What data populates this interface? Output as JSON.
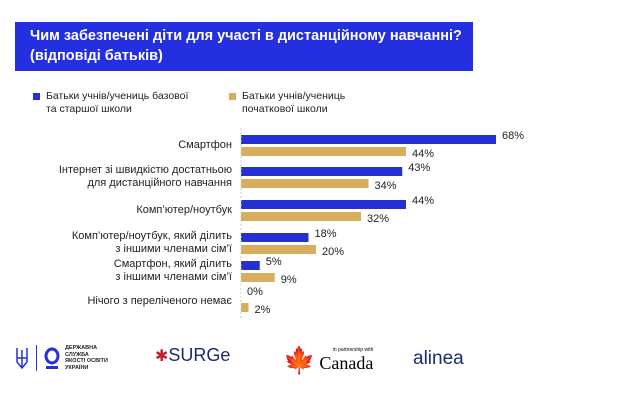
{
  "chart_data": {
    "type": "bar",
    "orientation": "horizontal",
    "title": "Чим забезпечені діти для участі в дистанційному навчанні? (відповіді батьків)",
    "categories": [
      "Смартфон",
      "Інтернет зі швидкістю достатньою для дистанційного навчання",
      "Комп’ютер/ноутбук",
      "Комп’ютер/ноутбук, який ділить з іншими членами сім’ї",
      "Смартфон, який ділить з іншими членами сім’ї",
      "Нічого з переліченого немає"
    ],
    "category_lines": [
      [
        "Смартфон"
      ],
      [
        "Інтернет зі швидкістю достатньою",
        "для дистанційного навчання"
      ],
      [
        "Комп’ютер/ноутбук"
      ],
      [
        "Комп’ютер/ноутбук, який ділить",
        "з іншими членами сім’ї"
      ],
      [
        "Смартфон, який ділить",
        "з іншими членами сім’ї"
      ],
      [
        "Нічого з переліченого немає"
      ]
    ],
    "series": [
      {
        "name": "Батьки учнів/учениць базової та старшої школи",
        "name_lines": [
          "Батьки учнів/учениць базової",
          "та старшої школи"
        ],
        "color": "#2430d0",
        "values": [
          68,
          43,
          44,
          18,
          5,
          0
        ]
      },
      {
        "name": "Батьки учнів/учениць початкової школи",
        "name_lines": [
          "Батьки учнів/учениць",
          "початкової школи"
        ],
        "color": "#d9ad5f",
        "values": [
          44,
          34,
          32,
          20,
          9,
          2
        ]
      }
    ],
    "value_suffix": "%",
    "xlim": [
      0,
      100
    ],
    "grid": false,
    "legend": "top-left"
  },
  "title_lines": [
    "Чим забезпечені діти для участі в дистанційному навчанні?",
    "(відповіді батьків)"
  ],
  "footer": {
    "dsyo": "ДЕРЖАВНА СЛУЖБА ЯКОСТІ ОСВІТИ УКРАЇНИ",
    "surge": "SURGe",
    "partnership": "in partnership with",
    "canada": "Canada",
    "alinea": "alinea"
  }
}
